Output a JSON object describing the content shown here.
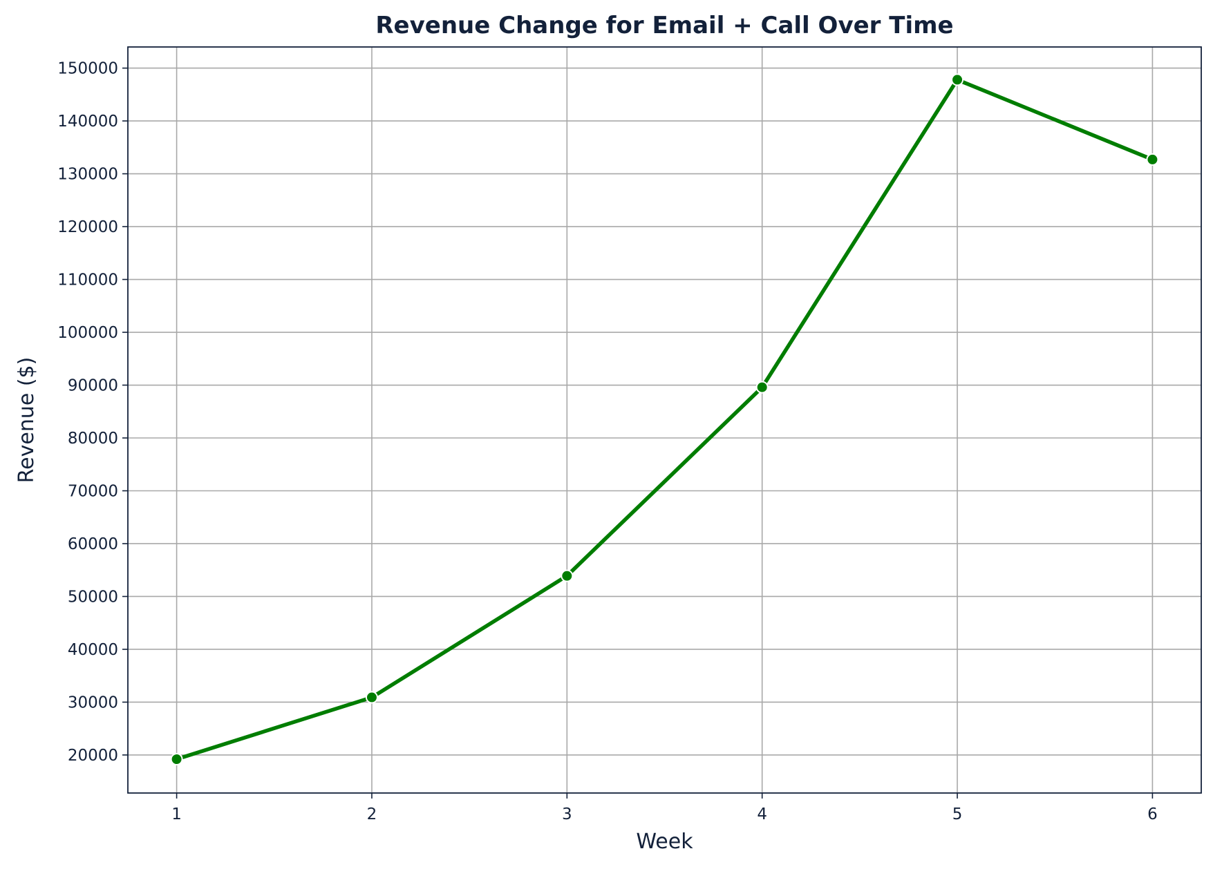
{
  "chart_data": {
    "type": "line",
    "title": "Revenue Change for Email + Call  Over Time",
    "xlabel": "Week",
    "ylabel": "Revenue ($)",
    "x": [
      1,
      2,
      3,
      4,
      5,
      6
    ],
    "series": [
      {
        "values": [
          19200,
          30900,
          53900,
          89600,
          147800,
          132700
        ],
        "color": "#007d00"
      }
    ],
    "xlim": [
      0.75,
      6.25
    ],
    "ylim": [
      12800,
      154000
    ],
    "xticks": [
      1,
      2,
      3,
      4,
      5,
      6
    ],
    "yticks": [
      20000,
      30000,
      40000,
      50000,
      60000,
      70000,
      80000,
      90000,
      100000,
      110000,
      120000,
      130000,
      140000,
      150000
    ],
    "grid": true,
    "marker": "circle",
    "colors": {
      "text": "#13213a",
      "grid": "#a8a8a8",
      "line": "#007d00"
    }
  }
}
